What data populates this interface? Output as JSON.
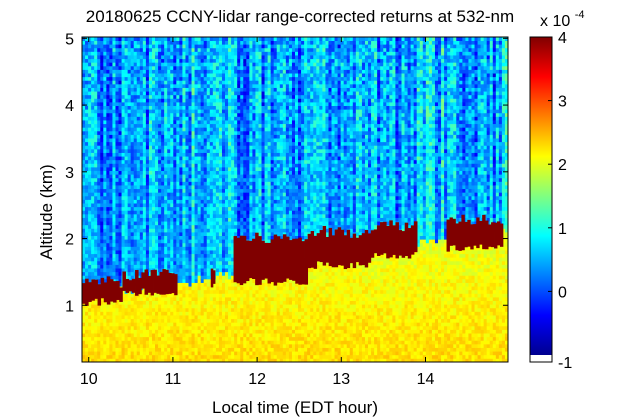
{
  "chart_data": {
    "type": "heatmap",
    "title": "20180625 CCNY-lidar range-corrected returns at 532-nm",
    "xlabel": "Local time (EDT hour)",
    "ylabel": "Altitude (km)",
    "xlim": [
      9.92,
      14.98
    ],
    "ylim": [
      0.15,
      5.02
    ],
    "x_ticks": [
      "10",
      "11",
      "12",
      "13",
      "14"
    ],
    "y_ticks": [
      "1",
      "2",
      "3",
      "4",
      "5"
    ],
    "grid": false,
    "colormap": "jet",
    "colorbar": {
      "range": [
        -1,
        4
      ],
      "ticks": [
        "-1",
        "0",
        "1",
        "2",
        "3",
        "4"
      ],
      "multiplier_base": "x 10",
      "multiplier_exp": "-4",
      "low_band_color": "#ffffff"
    },
    "cloud_layer": {
      "color": "#800000",
      "segments": [
        {
          "x": [
            9.92,
            10.4
          ],
          "base_km": 1.05,
          "top_km": 1.35
        },
        {
          "x": [
            10.4,
            10.7
          ],
          "base_km": 1.2,
          "top_km": 1.45
        },
        {
          "x": [
            10.7,
            11.05
          ],
          "base_km": 1.2,
          "top_km": 1.5
        },
        {
          "x": [
            11.45,
            11.5
          ],
          "base_km": 1.28,
          "top_km": 1.55
        },
        {
          "x": [
            11.72,
            12.6
          ],
          "base_km": 1.35,
          "top_km": 2.0
        },
        {
          "x": [
            12.6,
            13.35
          ],
          "base_km": 1.6,
          "top_km": 2.1
        },
        {
          "x": [
            13.35,
            13.9
          ],
          "base_km": 1.75,
          "top_km": 2.2
        },
        {
          "x": [
            14.25,
            14.92
          ],
          "base_km": 1.85,
          "top_km": 2.3
        }
      ]
    },
    "boundary_layer_top_km": [
      {
        "x": 9.92,
        "y": 1.2
      },
      {
        "x": 11.0,
        "y": 1.3
      },
      {
        "x": 12.0,
        "y": 1.55
      },
      {
        "x": 13.0,
        "y": 1.75
      },
      {
        "x": 14.0,
        "y": 1.95
      },
      {
        "x": 14.98,
        "y": 2.15
      }
    ],
    "clear_air_value_scale_e-4": 0.6,
    "boundary_layer_value_scale_e-4": 2.3
  }
}
